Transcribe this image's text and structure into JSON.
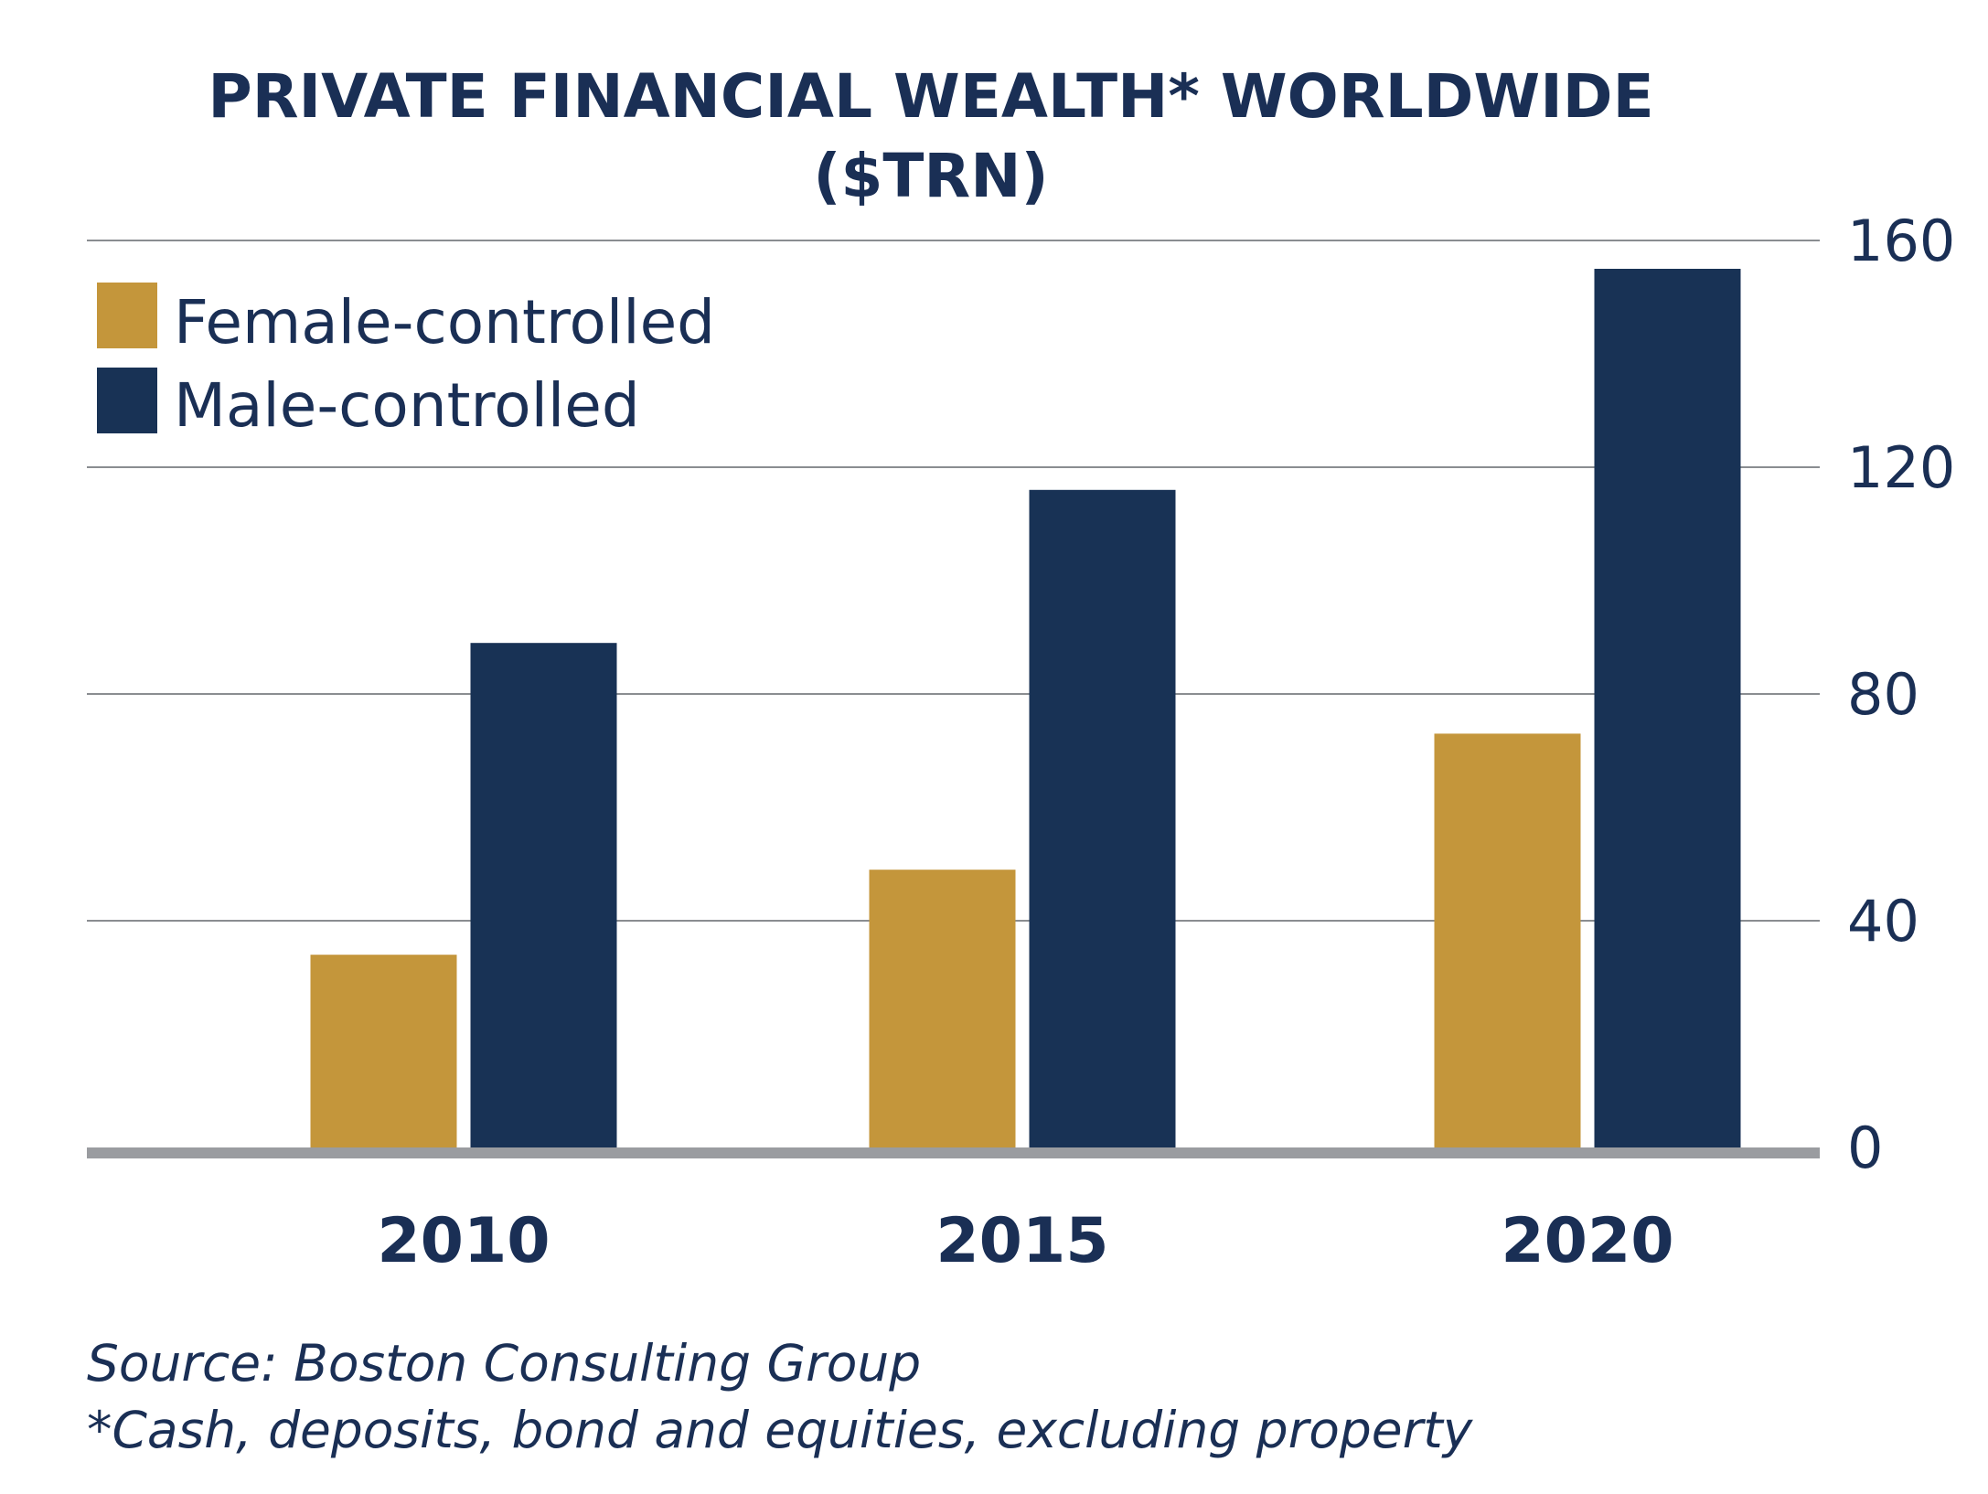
{
  "chart_data": {
    "type": "bar",
    "title": "PRIVATE FINANCIAL WEALTH* WORLDWIDE",
    "subtitle": "($TRN)",
    "categories": [
      "2010",
      "2015",
      "2020"
    ],
    "series": [
      {
        "name": "Female-controlled",
        "color": "#c4963b",
        "values": [
          34,
          49,
          73
        ]
      },
      {
        "name": "Male-controlled",
        "color": "#183255",
        "values": [
          89,
          116,
          155
        ]
      }
    ],
    "ylim": [
      0,
      160
    ],
    "yticks": [
      0,
      40,
      80,
      120,
      160
    ],
    "yaxis_position": "right",
    "grid": true,
    "legend_position": "top-left",
    "xlabel": "",
    "ylabel": ""
  },
  "footnotes": {
    "source": "Source: Boston Consulting Group",
    "note": "*Cash, deposits, bond and equities, excluding property"
  },
  "colors": {
    "text": "#1a2f55",
    "grid": "#8a8d91",
    "baseline": "#9a9ca0"
  }
}
